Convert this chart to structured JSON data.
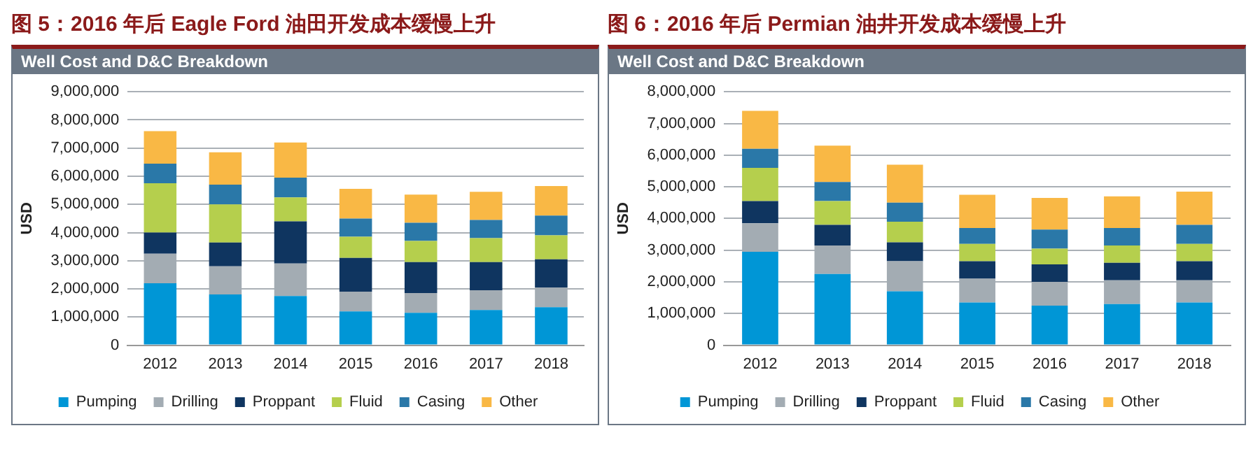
{
  "chart_data": [
    {
      "type": "bar",
      "title": "图 5：2016 年后 Eagle Ford 油田开发成本缓慢上升",
      "subtitle": "Well Cost and D&C Breakdown",
      "ylabel": "USD",
      "stacked": true,
      "grid": "y",
      "legend": "bottom",
      "categories": [
        "2012",
        "2013",
        "2014",
        "2015",
        "2016",
        "2017",
        "2018"
      ],
      "ylim": [
        0,
        9000000
      ],
      "yticks": [
        0,
        {
          "value": 1000000,
          "label": "1,000,000"
        },
        {
          "value": 2000000,
          "label": "2,000,000"
        },
        {
          "value": 3000000,
          "label": "3,000,000"
        },
        {
          "value": 4000000,
          "label": "4,000,000"
        },
        {
          "value": 5000000,
          "label": "5,000,000"
        },
        {
          "value": 6000000,
          "label": "6,000,000"
        },
        {
          "value": 7000000,
          "label": "7,000,000"
        },
        {
          "value": 8000000,
          "label": "8,000,000"
        },
        {
          "value": 9000000,
          "label": "9,000,000"
        }
      ],
      "series": [
        {
          "name": "Pumping",
          "color": "#0096d6",
          "values": [
            2200000,
            1800000,
            1750000,
            1200000,
            1150000,
            1250000,
            1350000
          ]
        },
        {
          "name": "Drilling",
          "color": "#a3acb3",
          "values": [
            1050000,
            1000000,
            1150000,
            700000,
            700000,
            700000,
            700000
          ]
        },
        {
          "name": "Proppant",
          "color": "#0f3560",
          "values": [
            750000,
            850000,
            1500000,
            1200000,
            1100000,
            1000000,
            1000000
          ]
        },
        {
          "name": "Fluid",
          "color": "#b5cf4d",
          "values": [
            1750000,
            1350000,
            850000,
            750000,
            750000,
            850000,
            850000
          ]
        },
        {
          "name": "Casing",
          "color": "#2a78a8",
          "values": [
            700000,
            700000,
            700000,
            650000,
            650000,
            650000,
            700000
          ]
        },
        {
          "name": "Other",
          "color": "#f9b845",
          "values": [
            1150000,
            1150000,
            1250000,
            1050000,
            1000000,
            1000000,
            1050000
          ]
        }
      ]
    },
    {
      "type": "bar",
      "title": "图 6：2016 年后 Permian 油井开发成本缓慢上升",
      "subtitle": "Well Cost and D&C Breakdown",
      "ylabel": "USD",
      "stacked": true,
      "grid": "y",
      "legend": "bottom",
      "categories": [
        "2012",
        "2013",
        "2014",
        "2015",
        "2016",
        "2017",
        "2018"
      ],
      "ylim": [
        0,
        8000000
      ],
      "yticks": [
        0,
        {
          "value": 1000000,
          "label": "1,000,000"
        },
        {
          "value": 2000000,
          "label": "2,000,000"
        },
        {
          "value": 3000000,
          "label": "3,000,000"
        },
        {
          "value": 4000000,
          "label": "4,000,000"
        },
        {
          "value": 5000000,
          "label": "5,000,000"
        },
        {
          "value": 6000000,
          "label": "6,000,000"
        },
        {
          "value": 7000000,
          "label": "7,000,000"
        },
        {
          "value": 8000000,
          "label": "8,000,000"
        }
      ],
      "series": [
        {
          "name": "Pumping",
          "color": "#0096d6",
          "values": [
            2950000,
            2250000,
            1700000,
            1350000,
            1250000,
            1300000,
            1350000
          ]
        },
        {
          "name": "Drilling",
          "color": "#a3acb3",
          "values": [
            900000,
            900000,
            950000,
            750000,
            750000,
            750000,
            700000
          ]
        },
        {
          "name": "Proppant",
          "color": "#0f3560",
          "values": [
            700000,
            650000,
            600000,
            550000,
            550000,
            550000,
            600000
          ]
        },
        {
          "name": "Fluid",
          "color": "#b5cf4d",
          "values": [
            1050000,
            750000,
            650000,
            550000,
            500000,
            550000,
            550000
          ]
        },
        {
          "name": "Casing",
          "color": "#2a78a8",
          "values": [
            600000,
            600000,
            600000,
            500000,
            600000,
            550000,
            600000
          ]
        },
        {
          "name": "Other",
          "color": "#f9b845",
          "values": [
            1200000,
            1150000,
            1200000,
            1050000,
            1000000,
            1000000,
            1050000
          ]
        }
      ]
    }
  ]
}
